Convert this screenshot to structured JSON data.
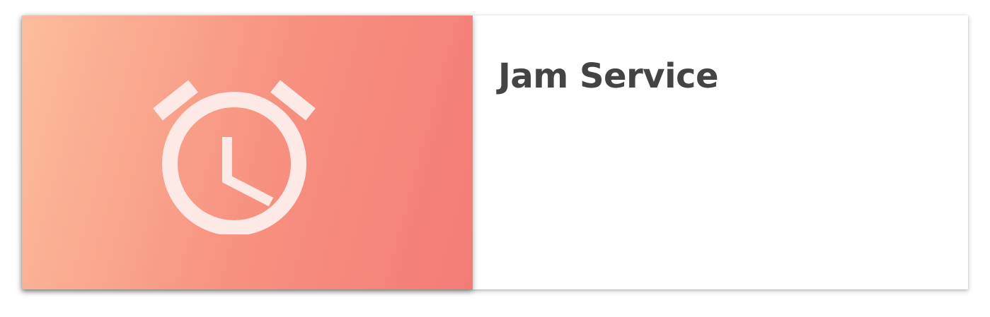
{
  "card": {
    "title": "Jam Service",
    "media_icon": "alarm-clock-icon",
    "gradient_colors": [
      "#fcbd9c",
      "#f47c77"
    ],
    "icon_color": "#fdeae6",
    "title_color": "#444444"
  }
}
